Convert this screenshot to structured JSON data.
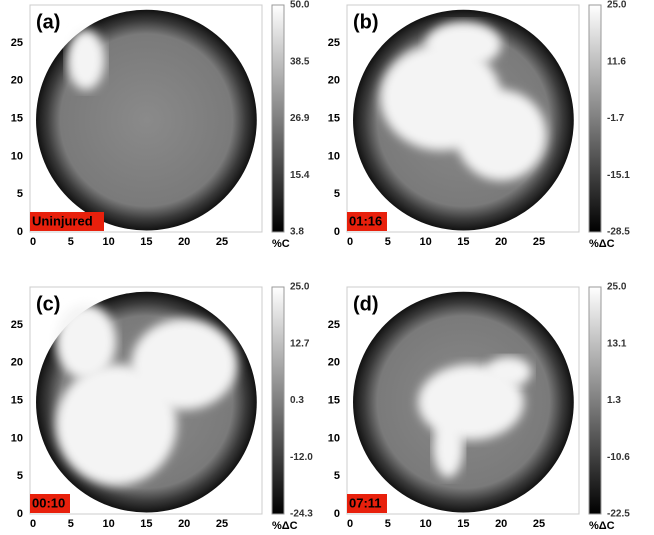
{
  "panels": [
    {
      "label": "(a)",
      "time": "Uninjured",
      "xticks": [
        "0",
        "5",
        "10",
        "15",
        "20",
        "25"
      ],
      "yticks": [
        "0",
        "5",
        "10",
        "15",
        "20",
        "25"
      ],
      "colorbar_ticks": [
        "50.0",
        "38.5",
        "26.9",
        "15.4",
        "3.8"
      ],
      "colorbar_unit": "%C"
    },
    {
      "label": "(b)",
      "time": "01:16",
      "xticks": [
        "0",
        "5",
        "10",
        "15",
        "20",
        "25"
      ],
      "yticks": [
        "0",
        "5",
        "10",
        "15",
        "20",
        "25"
      ],
      "colorbar_ticks": [
        "25.0",
        "11.6",
        "-1.7",
        "-15.1",
        "-28.5"
      ],
      "colorbar_unit": "%ΔC"
    },
    {
      "label": "(c)",
      "time": "00:10",
      "xticks": [
        "0",
        "5",
        "10",
        "15",
        "20",
        "25"
      ],
      "yticks": [
        "0",
        "5",
        "10",
        "15",
        "20",
        "25"
      ],
      "colorbar_ticks": [
        "25.0",
        "12.7",
        "0.3",
        "-12.0",
        "-24.3"
      ],
      "colorbar_unit": "%ΔC"
    },
    {
      "label": "(d)",
      "time": "07:11",
      "xticks": [
        "0",
        "5",
        "10",
        "15",
        "20",
        "25"
      ],
      "yticks": [
        "0",
        "5",
        "10",
        "15",
        "20",
        "25"
      ],
      "colorbar_ticks": [
        "25.0",
        "13.1",
        "1.3",
        "-10.6",
        "-22.5"
      ],
      "colorbar_unit": "%ΔC"
    }
  ]
}
